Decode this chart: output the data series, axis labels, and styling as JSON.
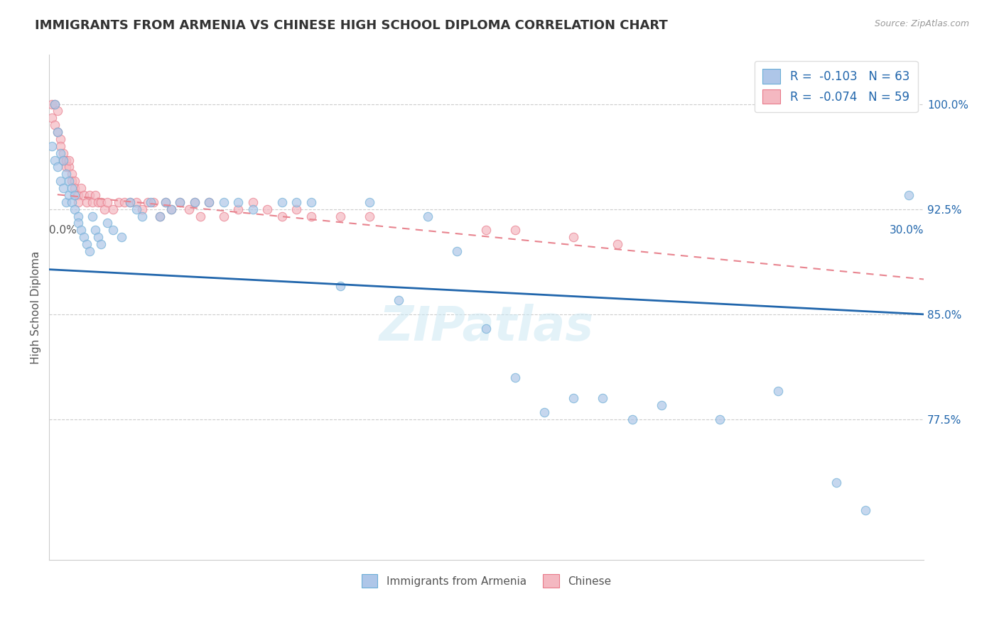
{
  "title": "IMMIGRANTS FROM ARMENIA VS CHINESE HIGH SCHOOL DIPLOMA CORRELATION CHART",
  "source": "Source: ZipAtlas.com",
  "ylabel": "High School Diploma",
  "ytick_labels": [
    "100.0%",
    "92.5%",
    "85.0%",
    "77.5%"
  ],
  "ytick_values": [
    1.0,
    0.925,
    0.85,
    0.775
  ],
  "xlim": [
    0.0,
    0.3
  ],
  "ylim": [
    0.675,
    1.035
  ],
  "legend_entries": [
    {
      "label": "R =  -0.103   N = 63",
      "color": "#aec6e8"
    },
    {
      "label": "R =  -0.074   N = 59",
      "color": "#f4b8c1"
    }
  ],
  "legend_bottom": [
    "Immigrants from Armenia",
    "Chinese"
  ],
  "legend_bottom_colors": [
    "#aec6e8",
    "#f4b8c1"
  ],
  "armenia_scatter_x": [
    0.001,
    0.002,
    0.002,
    0.003,
    0.003,
    0.004,
    0.004,
    0.005,
    0.005,
    0.006,
    0.006,
    0.007,
    0.007,
    0.008,
    0.008,
    0.009,
    0.009,
    0.01,
    0.01,
    0.011,
    0.012,
    0.013,
    0.014,
    0.015,
    0.016,
    0.017,
    0.018,
    0.02,
    0.022,
    0.025,
    0.028,
    0.03,
    0.032,
    0.035,
    0.038,
    0.04,
    0.042,
    0.045,
    0.05,
    0.055,
    0.06,
    0.065,
    0.07,
    0.08,
    0.085,
    0.09,
    0.1,
    0.11,
    0.12,
    0.13,
    0.14,
    0.15,
    0.16,
    0.17,
    0.18,
    0.19,
    0.2,
    0.21,
    0.23,
    0.25,
    0.27,
    0.28,
    0.295
  ],
  "armenia_scatter_y": [
    0.97,
    1.0,
    0.96,
    0.98,
    0.955,
    0.965,
    0.945,
    0.96,
    0.94,
    0.95,
    0.93,
    0.945,
    0.935,
    0.94,
    0.93,
    0.935,
    0.925,
    0.92,
    0.915,
    0.91,
    0.905,
    0.9,
    0.895,
    0.92,
    0.91,
    0.905,
    0.9,
    0.915,
    0.91,
    0.905,
    0.93,
    0.925,
    0.92,
    0.93,
    0.92,
    0.93,
    0.925,
    0.93,
    0.93,
    0.93,
    0.93,
    0.93,
    0.925,
    0.93,
    0.93,
    0.93,
    0.87,
    0.93,
    0.86,
    0.92,
    0.895,
    0.84,
    0.805,
    0.78,
    0.79,
    0.79,
    0.775,
    0.785,
    0.775,
    0.795,
    0.73,
    0.71,
    0.935
  ],
  "chinese_scatter_x": [
    0.001,
    0.001,
    0.002,
    0.002,
    0.003,
    0.003,
    0.004,
    0.004,
    0.005,
    0.005,
    0.006,
    0.006,
    0.007,
    0.007,
    0.008,
    0.008,
    0.009,
    0.009,
    0.01,
    0.01,
    0.011,
    0.012,
    0.013,
    0.014,
    0.015,
    0.016,
    0.017,
    0.018,
    0.019,
    0.02,
    0.022,
    0.024,
    0.026,
    0.028,
    0.03,
    0.032,
    0.034,
    0.036,
    0.038,
    0.04,
    0.042,
    0.045,
    0.048,
    0.05,
    0.052,
    0.055,
    0.06,
    0.065,
    0.07,
    0.075,
    0.08,
    0.085,
    0.09,
    0.1,
    0.11,
    0.15,
    0.16,
    0.18,
    0.195
  ],
  "chinese_scatter_y": [
    1.0,
    0.99,
    1.0,
    0.985,
    0.98,
    0.995,
    0.975,
    0.97,
    0.965,
    0.96,
    0.96,
    0.955,
    0.955,
    0.96,
    0.95,
    0.945,
    0.945,
    0.94,
    0.935,
    0.93,
    0.94,
    0.935,
    0.93,
    0.935,
    0.93,
    0.935,
    0.93,
    0.93,
    0.925,
    0.93,
    0.925,
    0.93,
    0.93,
    0.93,
    0.93,
    0.925,
    0.93,
    0.93,
    0.92,
    0.93,
    0.925,
    0.93,
    0.925,
    0.93,
    0.92,
    0.93,
    0.92,
    0.925,
    0.93,
    0.925,
    0.92,
    0.925,
    0.92,
    0.92,
    0.92,
    0.91,
    0.91,
    0.905,
    0.9
  ],
  "armenia_line_x": [
    0.0,
    0.3
  ],
  "armenia_line_y": [
    0.882,
    0.85
  ],
  "chinese_line_x": [
    0.0,
    0.3
  ],
  "chinese_line_y": [
    0.936,
    0.875
  ],
  "scatter_size": 80,
  "scatter_alpha": 0.7,
  "scatter_edge_armenia": "#6baed6",
  "scatter_edge_chinese": "#e87a8a",
  "scatter_color_armenia": "#aec6e8",
  "scatter_color_chinese": "#f4b8c1",
  "line_color_armenia": "#2166ac",
  "line_color_chinese": "#e8848f",
  "watermark": "ZIPatlas",
  "title_fontsize": 13,
  "axis_fontsize": 11,
  "tick_fontsize": 11
}
